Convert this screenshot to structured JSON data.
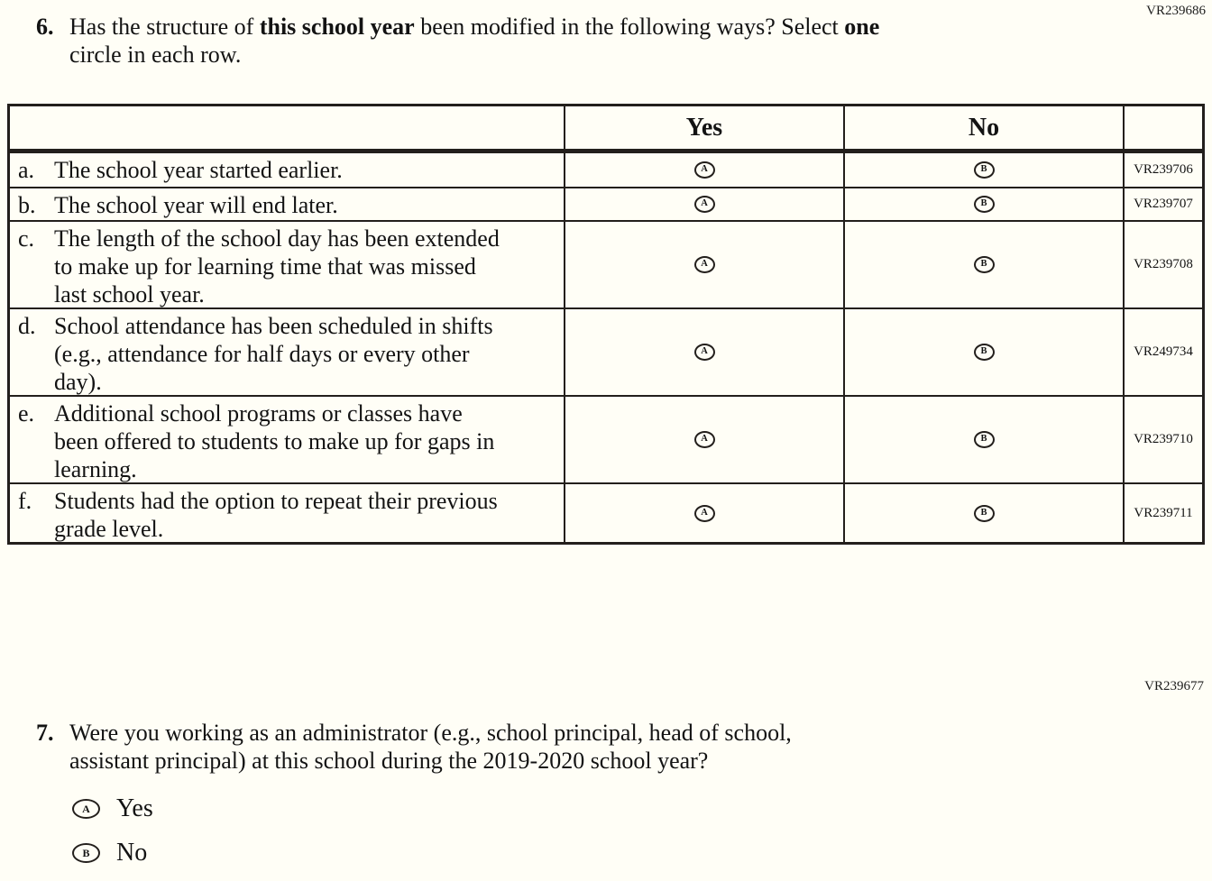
{
  "codes": {
    "q6_code": "VR239686",
    "q7_code": "VR239677"
  },
  "question6": {
    "number": "6.",
    "line1_seg1": "Has the structure of ",
    "line1_bold1": "this school year",
    "line1_seg2": " been modified in the following ways? Select ",
    "line1_bold2": "one",
    "line2": "circle in each row."
  },
  "table": {
    "headers": {
      "yes": "Yes",
      "no": "No"
    },
    "rows": [
      {
        "letter": "a.",
        "text": "The school year started earlier.",
        "yes_letter": "A",
        "no_letter": "B",
        "code": "VR239706"
      },
      {
        "letter": "b.",
        "text": "The school year will end later.",
        "yes_letter": "A",
        "no_letter": "B",
        "code": "VR239707"
      },
      {
        "letter": "c.",
        "text": "The length of the school day has been extended to make up for learning time that was missed last school year.",
        "yes_letter": "A",
        "no_letter": "B",
        "code": "VR239708"
      },
      {
        "letter": "d.",
        "text": "School attendance has been scheduled in shifts (e.g., attendance for half days or every other day).",
        "yes_letter": "A",
        "no_letter": "B",
        "code": "VR249734"
      },
      {
        "letter": "e.",
        "text": "Additional school programs or classes have been offered to students to make up for gaps in learning.",
        "yes_letter": "A",
        "no_letter": "B",
        "code": "VR239710"
      },
      {
        "letter": "f.",
        "text": "Students had the option to repeat their previous grade level.",
        "yes_letter": "A",
        "no_letter": "B",
        "code": "VR239711"
      }
    ]
  },
  "question7": {
    "number": "7.",
    "line1": "Were you working as an administrator (e.g., school principal, head of school,",
    "line2": "assistant principal) at this school during the 2019-2020 school year?",
    "options": [
      {
        "letter": "A",
        "label": "Yes"
      },
      {
        "letter": "B",
        "label": "No"
      }
    ]
  }
}
